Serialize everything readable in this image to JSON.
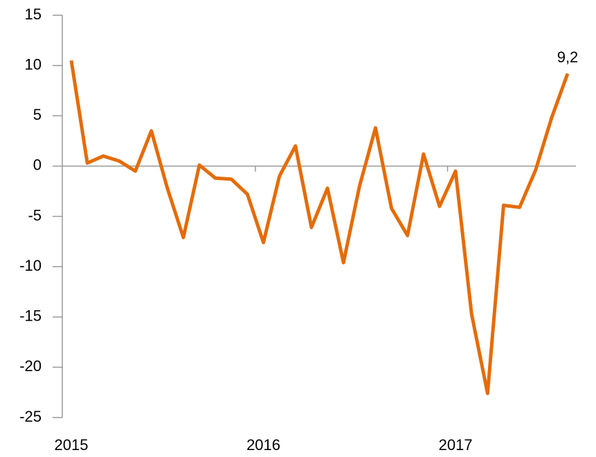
{
  "chart_data": {
    "type": "line",
    "categories": [
      "2015",
      null,
      null,
      null,
      null,
      null,
      null,
      null,
      null,
      null,
      null,
      null,
      "2016",
      null,
      null,
      null,
      null,
      null,
      null,
      null,
      null,
      null,
      null,
      null,
      "2017",
      null,
      null,
      null,
      null,
      null,
      null,
      null
    ],
    "values": [
      10.5,
      0.3,
      1.0,
      0.5,
      -0.5,
      3.5,
      -2.2,
      -7.1,
      0.1,
      -1.2,
      -1.3,
      -2.8,
      -7.6,
      -1.0,
      2.0,
      -6.1,
      -2.2,
      -9.6,
      -2.0,
      3.8,
      -4.2,
      -6.9,
      1.2,
      -4.0,
      -0.5,
      -14.7,
      -22.6,
      -3.9,
      -4.1,
      -0.4,
      4.8,
      9.2
    ],
    "value_labels": [
      null,
      null,
      null,
      null,
      null,
      null,
      null,
      null,
      null,
      null,
      null,
      null,
      null,
      null,
      null,
      null,
      null,
      null,
      null,
      null,
      null,
      null,
      null,
      null,
      null,
      null,
      null,
      null,
      null,
      null,
      null,
      "9,2"
    ],
    "color": "#e46c0a",
    "ylim": [
      -25,
      15
    ],
    "yticks": [
      -25,
      -20,
      -15,
      -10,
      -5,
      0,
      5,
      10,
      15
    ]
  }
}
